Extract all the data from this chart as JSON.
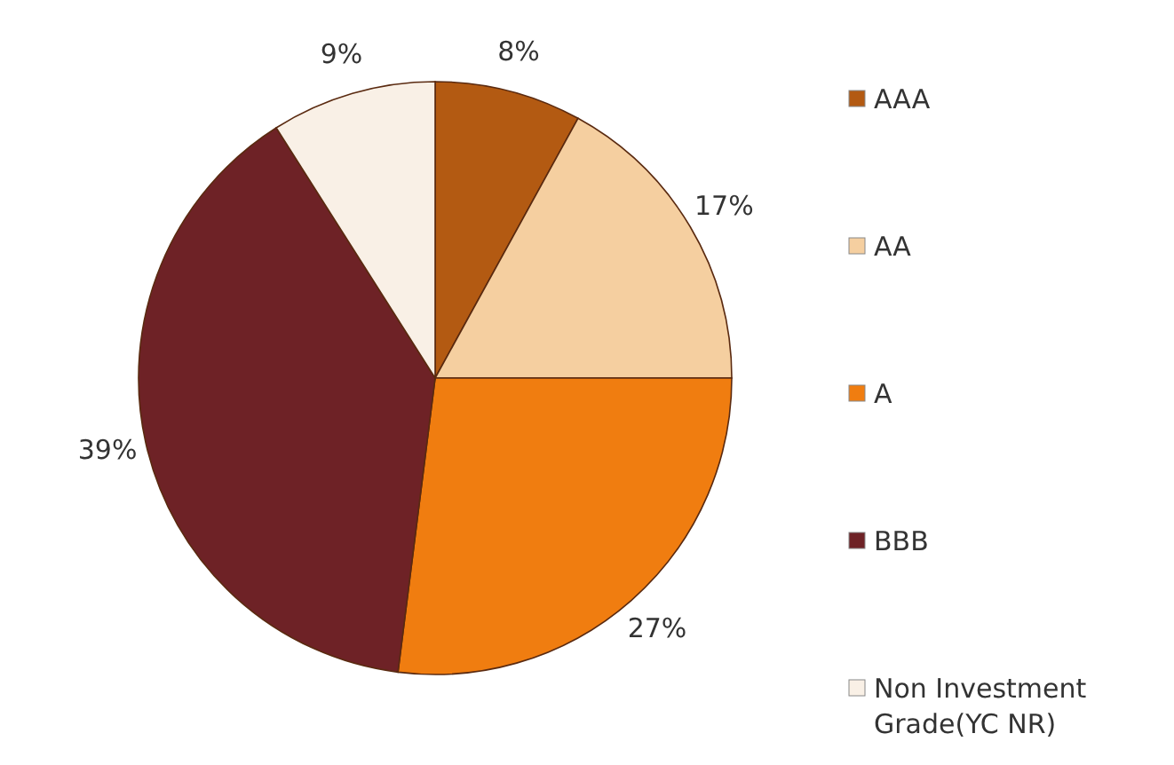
{
  "chart_data": {
    "type": "pie",
    "categories": [
      "AAA",
      "AA",
      "A",
      "BBB",
      "Non Investment Grade(YC NR)"
    ],
    "values": [
      8,
      17,
      27,
      39,
      9
    ],
    "value_labels": [
      "8%",
      "17%",
      "27%",
      "39%",
      "9%"
    ],
    "colors": [
      "#b35a12",
      "#f5cfa0",
      "#f07d10",
      "#6e2226",
      "#f9f0e6"
    ],
    "legend": "right"
  }
}
